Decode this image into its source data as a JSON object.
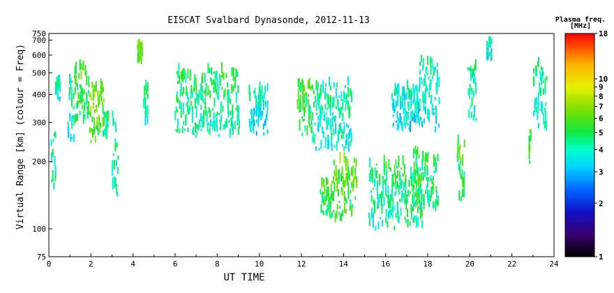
{
  "chart_data": {
    "type": "scatter",
    "title": "EISCAT Svalbard Dynasonde, 2012-11-13",
    "xlabel": "UT TIME",
    "ylabel": "Virtual Range [km] (colour = Freq)",
    "xlim": [
      0,
      24
    ],
    "ylim": [
      75,
      750
    ],
    "yscale": "log",
    "x_ticks": [
      "0",
      "2",
      "4",
      "6",
      "8",
      "10",
      "12",
      "14",
      "16",
      "18",
      "20",
      "22",
      "24"
    ],
    "y_ticks": [
      "75",
      "100",
      "200",
      "300",
      "400",
      "500",
      "600",
      "700",
      "750"
    ],
    "grid": false,
    "colorbar": {
      "title": "Plasma freq.",
      "unit": "[MHz]",
      "range": [
        1,
        18
      ],
      "scale": "log",
      "tick_labels": [
        "18",
        "10",
        "9",
        "8",
        "7",
        "6",
        "5",
        "4",
        "3",
        "2",
        "1"
      ]
    },
    "series": [
      {
        "segments": [
          {
            "t0": 0.9,
            "t1": 1.15,
            "rlo": 230,
            "rhi": 460,
            "f": 3.5
          },
          {
            "t0": 1.2,
            "t1": 1.9,
            "rlo": 290,
            "rhi": 520,
            "f": 4.5
          },
          {
            "t0": 1.9,
            "t1": 2.6,
            "rlo": 240,
            "rhi": 430,
            "f": 5.5
          },
          {
            "t0": 2.6,
            "t1": 2.8,
            "rlo": 250,
            "rhi": 340,
            "f": 4.2
          },
          {
            "t0": 3.0,
            "t1": 3.3,
            "rlo": 135,
            "rhi": 320,
            "f": 3.8
          },
          {
            "t0": 6.0,
            "t1": 9.0,
            "rlo": 255,
            "rhi": 500,
            "f": 4.0
          },
          {
            "t0": 9.5,
            "t1": 10.4,
            "rlo": 255,
            "rhi": 420,
            "f": 3.2
          },
          {
            "t0": 11.8,
            "t1": 12.5,
            "rlo": 245,
            "rhi": 450,
            "f": 4.4
          },
          {
            "t0": 12.5,
            "t1": 14.4,
            "rlo": 220,
            "rhi": 440,
            "f": 3.6
          },
          {
            "t0": 12.9,
            "t1": 13.5,
            "rlo": 110,
            "rhi": 160,
            "f": 4.6
          },
          {
            "t0": 13.5,
            "t1": 14.6,
            "rlo": 105,
            "rhi": 200,
            "f": 5.0
          },
          {
            "t0": 15.2,
            "t1": 16.9,
            "rlo": 98,
            "rhi": 195,
            "f": 4.0
          },
          {
            "t0": 16.9,
            "t1": 17.7,
            "rlo": 100,
            "rhi": 180,
            "f": 4.5
          },
          {
            "t0": 16.3,
            "t1": 17.6,
            "rlo": 270,
            "rhi": 420,
            "f": 3.2
          },
          {
            "t0": 17.6,
            "t1": 18.5,
            "rlo": 265,
            "rhi": 560,
            "f": 3.4
          },
          {
            "t0": 17.2,
            "t1": 18.5,
            "rlo": 120,
            "rhi": 220,
            "f": 4.0
          },
          {
            "t0": 19.4,
            "t1": 19.7,
            "rlo": 130,
            "rhi": 240,
            "f": 4.6
          },
          {
            "t0": 19.9,
            "t1": 20.3,
            "rlo": 300,
            "rhi": 520,
            "f": 3.7
          },
          {
            "t0": 23.0,
            "t1": 23.6,
            "rlo": 270,
            "rhi": 540,
            "f": 3.8
          },
          {
            "t0": 0.1,
            "t1": 0.3,
            "rlo": 140,
            "rhi": 260,
            "f": 3.8
          },
          {
            "t0": 0.3,
            "t1": 0.5,
            "rlo": 370,
            "rhi": 440,
            "f": 3.5
          },
          {
            "t0": 4.2,
            "t1": 4.4,
            "rlo": 530,
            "rhi": 640,
            "f": 5.0
          },
          {
            "t0": 4.5,
            "t1": 4.7,
            "rlo": 290,
            "rhi": 420,
            "f": 3.8
          },
          {
            "t0": 20.8,
            "t1": 21.0,
            "rlo": 560,
            "rhi": 690,
            "f": 3.4
          },
          {
            "t0": 22.8,
            "t1": 22.9,
            "rlo": 190,
            "rhi": 270,
            "f": 5.2
          }
        ]
      }
    ]
  }
}
